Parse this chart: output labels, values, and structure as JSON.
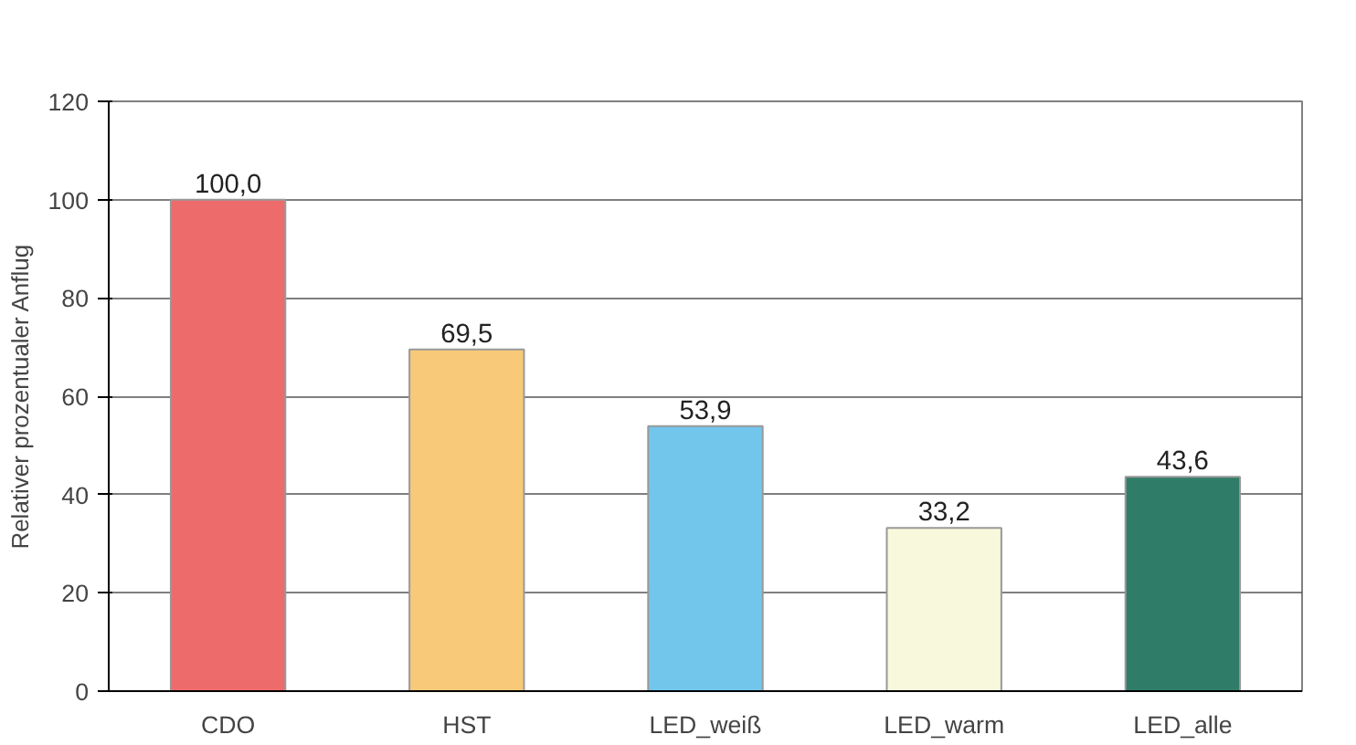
{
  "chart_data": {
    "type": "bar",
    "ylabel": "Relativer prozentualer Anflug",
    "categories": [
      "CDO",
      "HST",
      "LED_weiß",
      "LED_warm",
      "LED_alle"
    ],
    "values": [
      100.0,
      69.5,
      53.9,
      33.2,
      43.6
    ],
    "value_labels": [
      "100,0",
      "69,5",
      "53,9",
      "33,2",
      "43,6"
    ],
    "colors": [
      "#ee6b6b",
      "#f9c97a",
      "#72c6ec",
      "#f8f8dc",
      "#2f7d68"
    ],
    "ylim": [
      0,
      120
    ],
    "yticks": [
      0,
      20,
      40,
      60,
      80,
      100,
      120
    ],
    "grid": "y"
  }
}
